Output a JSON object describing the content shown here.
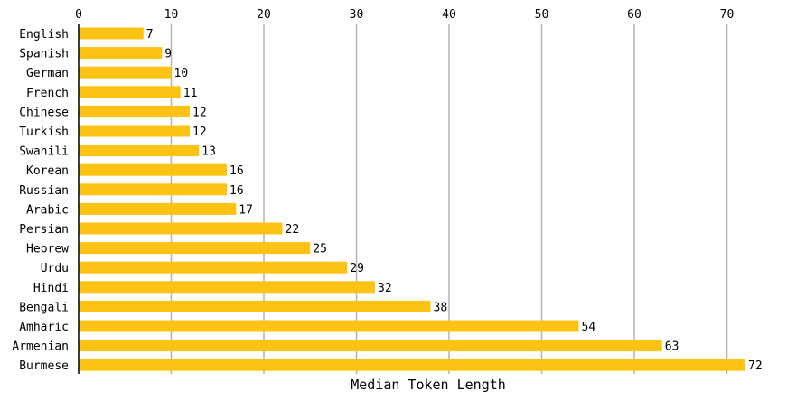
{
  "chart_data": {
    "type": "bar",
    "orientation": "horizontal",
    "title": "",
    "xlabel": "Median Token Length",
    "ylabel": "",
    "xlim": [
      0,
      73
    ],
    "x_ticks": [
      0,
      10,
      20,
      30,
      40,
      50,
      60,
      70
    ],
    "x_axis_position": "top",
    "grid": "vertical",
    "bar_color": "#fcc314",
    "categories": [
      "English",
      "Spanish",
      "German",
      "French",
      "Chinese",
      "Turkish",
      "Swahili",
      "Korean",
      "Russian",
      "Arabic",
      "Persian",
      "Hebrew",
      "Urdu",
      "Hindi",
      "Bengali",
      "Amharic",
      "Armenian",
      "Burmese"
    ],
    "values": [
      7,
      9,
      10,
      11,
      12,
      12,
      13,
      16,
      16,
      17,
      22,
      25,
      29,
      32,
      38,
      54,
      63,
      72
    ]
  }
}
